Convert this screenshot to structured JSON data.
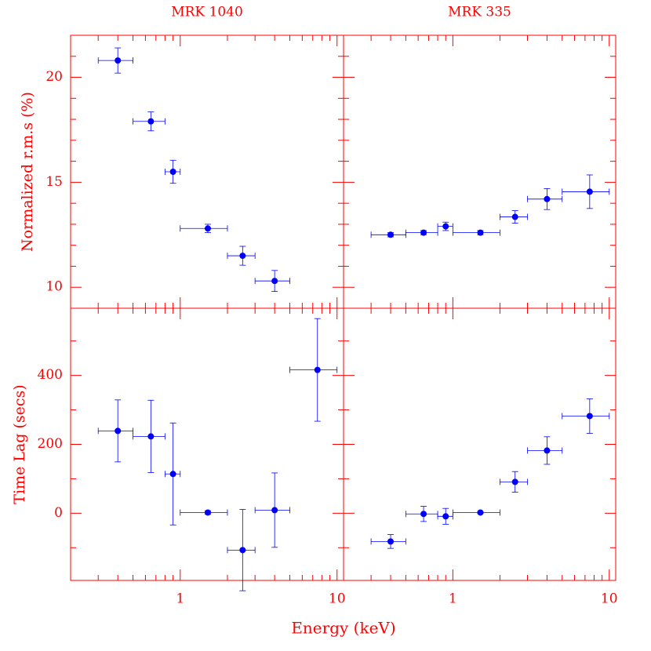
{
  "xlabel": "Energy (keV)",
  "chart_data": [
    {
      "type": "scatter",
      "title": "MRK 1040",
      "ylabel": "Normalized r.m.s (%)",
      "log_x": true,
      "color": "#0000ff",
      "axis_color": "#ff0000",
      "x": [
        0.4,
        0.65,
        0.9,
        1.5,
        2.5,
        4
      ],
      "x_low": [
        0.3,
        0.5,
        0.8,
        1,
        2,
        3
      ],
      "x_high": [
        0.5,
        0.8,
        1,
        2,
        3,
        5
      ],
      "values": [
        20.8,
        17.9,
        15.5,
        12.8,
        11.5,
        10.3
      ],
      "errors": [
        0.6,
        0.45,
        0.55,
        0.2,
        0.45,
        0.5
      ],
      "xlim": [
        0.2,
        11
      ],
      "xticks": [
        1,
        10
      ],
      "xminor": [
        0.2,
        0.3,
        0.4,
        0.5,
        0.6,
        0.7,
        0.8,
        0.9,
        2,
        3,
        4,
        5,
        6,
        7,
        8,
        9
      ],
      "xtick_labels": false,
      "ylim": [
        9,
        22
      ],
      "yticks": [
        10,
        15,
        20
      ],
      "yminor": [
        9,
        11,
        12,
        13,
        14,
        16,
        17,
        18,
        19,
        21,
        22
      ],
      "ytick_labels": true
    },
    {
      "type": "scatter",
      "title": "MRK 335",
      "log_x": true,
      "color": "#0000ff",
      "axis_color": "#ff0000",
      "x": [
        0.4,
        0.65,
        0.9,
        1.5,
        2.5,
        4,
        7.5
      ],
      "x_low": [
        0.3,
        0.5,
        0.8,
        1,
        2,
        3,
        5
      ],
      "x_high": [
        0.5,
        0.8,
        1,
        2,
        3,
        5,
        10
      ],
      "values": [
        12.5,
        12.6,
        12.9,
        12.6,
        13.35,
        14.2,
        14.55
      ],
      "errors": [
        0.1,
        0.1,
        0.2,
        0.1,
        0.3,
        0.5,
        0.8
      ],
      "xlim": [
        0.2,
        11
      ],
      "xticks": [
        1,
        10
      ],
      "xminor": [
        0.2,
        0.3,
        0.4,
        0.5,
        0.6,
        0.7,
        0.8,
        0.9,
        2,
        3,
        4,
        5,
        6,
        7,
        8,
        9
      ],
      "xtick_labels": false,
      "ylim": [
        9,
        22
      ],
      "yticks": [
        10,
        15,
        20
      ],
      "yminor": [
        9,
        11,
        12,
        13,
        14,
        16,
        17,
        18,
        19,
        21,
        22
      ],
      "ytick_labels": false
    },
    {
      "type": "scatter",
      "ylabel": "Time Lag (secs)",
      "log_x": true,
      "color": "#0000ff",
      "axis_color": "#ff0000",
      "x": [
        0.4,
        0.65,
        0.9,
        1.5,
        2.5,
        4,
        7.5
      ],
      "x_low": [
        0.3,
        0.5,
        0.8,
        1,
        2,
        3,
        5
      ],
      "x_high": [
        0.5,
        0.8,
        1,
        2,
        3,
        5,
        10
      ],
      "values": [
        239,
        223,
        114,
        2,
        -107,
        9,
        416
      ],
      "errors": [
        90,
        105,
        148,
        5,
        118,
        108,
        149
      ],
      "xlim": [
        0.2,
        11
      ],
      "xticks": [
        1,
        10
      ],
      "xminor": [
        0.2,
        0.3,
        0.4,
        0.5,
        0.6,
        0.7,
        0.8,
        0.9,
        2,
        3,
        4,
        5,
        6,
        7,
        8,
        9
      ],
      "xtick_labels": true,
      "ylim": [
        -195,
        595
      ],
      "yticks": [
        0,
        200,
        400
      ],
      "yminor": [
        -100,
        100,
        300,
        500
      ],
      "ytick_labels": true
    },
    {
      "type": "scatter",
      "log_x": true,
      "color": "#0000ff",
      "axis_color": "#ff0000",
      "x": [
        0.4,
        0.65,
        0.9,
        1.5,
        2.5,
        4,
        7.5
      ],
      "x_low": [
        0.3,
        0.5,
        0.8,
        1,
        2,
        3,
        5
      ],
      "x_high": [
        0.5,
        0.8,
        1,
        2,
        3,
        5,
        10
      ],
      "values": [
        -82,
        -2,
        -9,
        2,
        91,
        182,
        282
      ],
      "errors": [
        20,
        22,
        23,
        3,
        30,
        40,
        50
      ],
      "xlim": [
        0.2,
        11
      ],
      "xticks": [
        1,
        10
      ],
      "xminor": [
        0.2,
        0.3,
        0.4,
        0.5,
        0.6,
        0.7,
        0.8,
        0.9,
        2,
        3,
        4,
        5,
        6,
        7,
        8,
        9
      ],
      "xtick_labels": true,
      "ylim": [
        -195,
        595
      ],
      "yticks": [
        0,
        200,
        400
      ],
      "yminor": [
        -100,
        100,
        300,
        500
      ],
      "ytick_labels": false
    }
  ]
}
